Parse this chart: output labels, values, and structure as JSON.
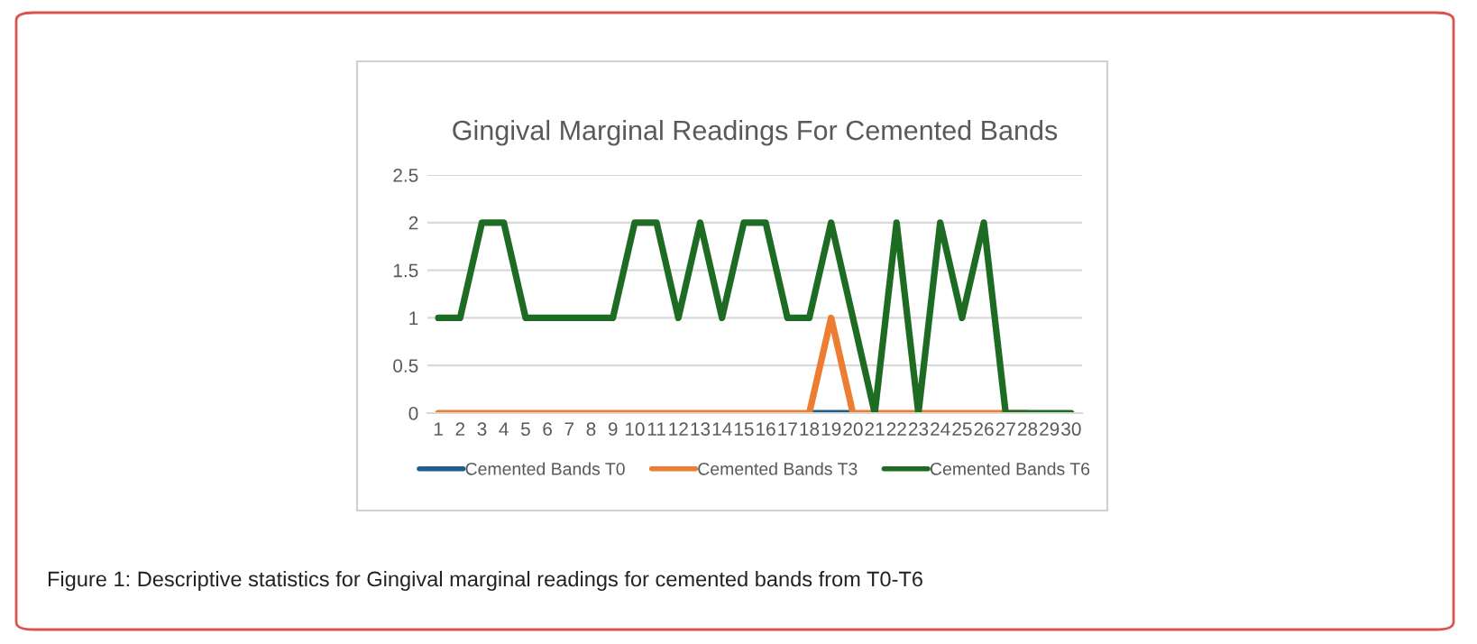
{
  "chart_data": {
    "type": "line",
    "title": "Gingival Marginal Readings For Cemented Bands",
    "categories": [
      "1",
      "2",
      "3",
      "4",
      "5",
      "6",
      "7",
      "8",
      "9",
      "10",
      "11",
      "12",
      "13",
      "14",
      "15",
      "16",
      "17",
      "18",
      "19",
      "20",
      "21",
      "22",
      "23",
      "24",
      "25",
      "26",
      "27",
      "28",
      "29",
      "30"
    ],
    "series": [
      {
        "name": "Cemented Bands T0",
        "color": "#1f5f8b",
        "values": [
          null,
          null,
          null,
          null,
          null,
          null,
          null,
          null,
          null,
          null,
          null,
          null,
          null,
          null,
          null,
          null,
          null,
          0,
          0,
          0,
          null,
          null,
          null,
          null,
          null,
          null,
          null,
          null,
          null,
          null
        ]
      },
      {
        "name": "Cemented Bands T3",
        "color": "#ed7d31",
        "values": [
          0,
          0,
          0,
          0,
          0,
          0,
          0,
          0,
          0,
          0,
          0,
          0,
          0,
          0,
          0,
          0,
          0,
          0,
          1,
          0,
          0,
          0,
          0,
          0,
          0,
          0,
          0,
          0,
          null,
          null
        ]
      },
      {
        "name": "Cemented Bands T6",
        "color": "#1e6b23",
        "values": [
          1,
          1,
          2,
          2,
          1,
          1,
          1,
          1,
          1,
          2,
          2,
          1,
          2,
          1,
          2,
          2,
          1,
          1,
          2,
          1,
          0,
          2,
          0,
          2,
          1,
          2,
          0,
          0,
          0,
          0
        ]
      }
    ],
    "ylim": [
      0,
      2.5
    ],
    "yticks": [
      0,
      0.5,
      1,
      1.5,
      2,
      2.5
    ],
    "grid": "y",
    "legend": "bottom",
    "marker": "none",
    "line_style": "solid",
    "annotations": [
      "Figure 1: Descriptive statistics for Gingival marginal readings for cemented bands from T0-T6"
    ]
  }
}
